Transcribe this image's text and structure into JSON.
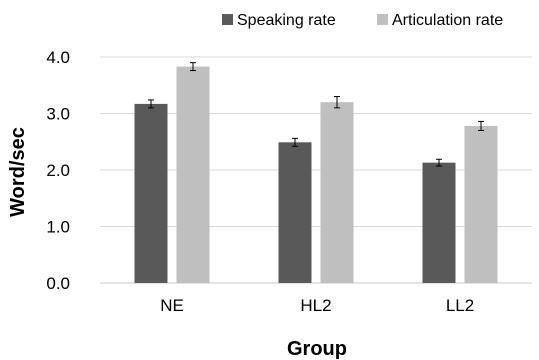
{
  "chart_data": {
    "type": "bar",
    "title": "",
    "xlabel": "Group",
    "ylabel": "Word/sec",
    "categories": [
      "NE",
      "HL2",
      "LL2"
    ],
    "series": [
      {
        "name": "Speaking rate",
        "color": "#595959",
        "values": [
          3.17,
          2.49,
          2.13
        ],
        "error": [
          0.07,
          0.07,
          0.06
        ]
      },
      {
        "name": "Articulation rate",
        "color": "#bfbfbf",
        "values": [
          3.83,
          3.2,
          2.78
        ],
        "error": [
          0.07,
          0.1,
          0.08
        ]
      }
    ],
    "ylim": [
      0,
      4
    ],
    "yticks": [
      "0.0",
      "1.0",
      "2.0",
      "3.0",
      "4.0"
    ],
    "grid": true,
    "legend_position": "top-right"
  }
}
